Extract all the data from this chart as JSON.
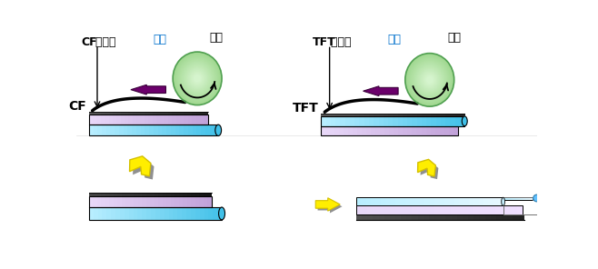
{
  "bg_color": "#ffffff",
  "panels": {
    "left_label_bold": "CF",
    "left_label_rest": " 偏光片",
    "left_blue_label": "贴片",
    "left_black_label": "滚轮",
    "left_sub": "CF",
    "right_label_bold": "TFT",
    "right_label_rest": " 偏光片",
    "right_blue_label": "贴片",
    "right_black_label": "滚轮",
    "right_sub": "TFT"
  },
  "colors": {
    "purple_arrow": "#6b006b",
    "roller_light": "#d8f5d0",
    "roller_dark": "#a0d890",
    "roller_outline": "#50a050",
    "cyan_light": "#b8eeff",
    "cyan_mid": "#78d8f8",
    "cyan_dark": "#40c0e8",
    "lavender_light": "#e8d8f8",
    "lavender_mid": "#d0b8e8",
    "lavender_dark": "#c0a0d8",
    "black_strip": "#303030",
    "yellow": "#ffee00",
    "yellow_outline": "#d4c000",
    "gray_shadow": "#909090",
    "label_blue": "#0070cc",
    "film_curve": "#000000"
  }
}
